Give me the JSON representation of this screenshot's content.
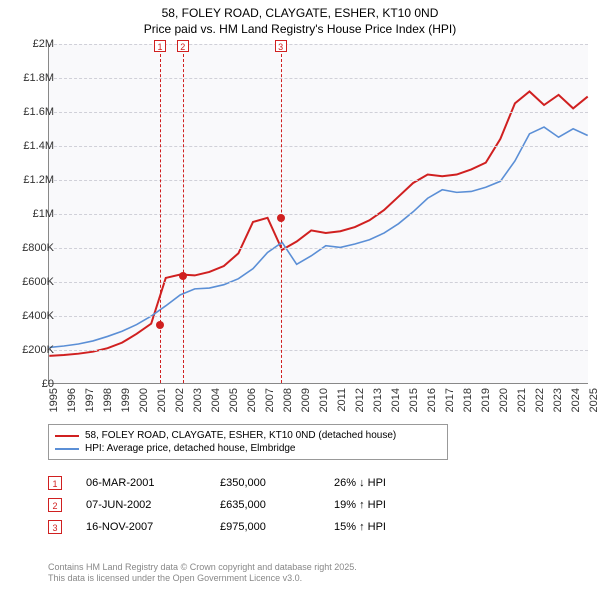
{
  "title_line1": "58, FOLEY ROAD, CLAYGATE, ESHER, KT10 0ND",
  "title_line2": "Price paid vs. HM Land Registry's House Price Index (HPI)",
  "chart": {
    "type": "line",
    "background_color": "#f9f9fb",
    "grid_color": "#d0d0d8",
    "axis_color": "#888888",
    "xlim": [
      1995,
      2025
    ],
    "ylim": [
      0,
      2000000
    ],
    "ytick_step": 200000,
    "ytick_labels": [
      "£0",
      "£200K",
      "£400K",
      "£600K",
      "£800K",
      "£1M",
      "£1.2M",
      "£1.4M",
      "£1.6M",
      "£1.8M",
      "£2M"
    ],
    "xtick_step": 1,
    "xtick_labels": [
      "1995",
      "1996",
      "1997",
      "1998",
      "1999",
      "2000",
      "2001",
      "2002",
      "2003",
      "2004",
      "2005",
      "2006",
      "2007",
      "2008",
      "2009",
      "2010",
      "2011",
      "2012",
      "2013",
      "2014",
      "2015",
      "2016",
      "2017",
      "2018",
      "2019",
      "2020",
      "2021",
      "2022",
      "2023",
      "2024",
      "2025"
    ],
    "series": [
      {
        "name": "price_paid",
        "label": "58, FOLEY ROAD, CLAYGATE, ESHER, KT10 0ND (detached house)",
        "color": "#d02020",
        "line_width": 2,
        "y": [
          160,
          165,
          173,
          185,
          205,
          238,
          290,
          350,
          620,
          640,
          635,
          655,
          690,
          765,
          950,
          975,
          785,
          835,
          900,
          885,
          895,
          920,
          960,
          1020,
          1100,
          1180,
          1230,
          1220,
          1230,
          1260,
          1300,
          1440,
          1650,
          1720,
          1640,
          1700,
          1620,
          1690
        ]
      },
      {
        "name": "hpi",
        "label": "HPI: Average price, detached house, Elmbridge",
        "color": "#5b8fd6",
        "line_width": 1.6,
        "y": [
          210,
          218,
          230,
          248,
          275,
          305,
          345,
          395,
          455,
          520,
          555,
          560,
          580,
          615,
          675,
          770,
          830,
          700,
          750,
          810,
          800,
          820,
          845,
          885,
          940,
          1010,
          1090,
          1140,
          1125,
          1130,
          1155,
          1190,
          1310,
          1470,
          1510,
          1450,
          1500,
          1460
        ]
      }
    ],
    "markers": [
      {
        "n": "1",
        "year": 2001.17,
        "price": 350000
      },
      {
        "n": "2",
        "year": 2002.43,
        "price": 635000
      },
      {
        "n": "3",
        "year": 2007.87,
        "price": 975000
      }
    ]
  },
  "legend": {
    "rows": [
      {
        "color": "#d02020",
        "label": "58, FOLEY ROAD, CLAYGATE, ESHER, KT10 0ND (detached house)"
      },
      {
        "color": "#5b8fd6",
        "label": "HPI: Average price, detached house, Elmbridge"
      }
    ]
  },
  "events": [
    {
      "n": "1",
      "date": "06-MAR-2001",
      "price": "£350,000",
      "delta": "26% ↓ HPI"
    },
    {
      "n": "2",
      "date": "07-JUN-2002",
      "price": "£635,000",
      "delta": "19% ↑ HPI"
    },
    {
      "n": "3",
      "date": "16-NOV-2007",
      "price": "£975,000",
      "delta": "15% ↑ HPI"
    }
  ],
  "footer_line1": "Contains HM Land Registry data © Crown copyright and database right 2025.",
  "footer_line2": "This data is licensed under the Open Government Licence v3.0."
}
